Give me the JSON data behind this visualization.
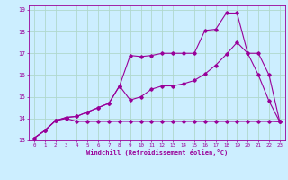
{
  "xlabel": "Windchill (Refroidissement éolien,°C)",
  "ylabel": "",
  "bg_color": "#cceeff",
  "grid_color": "#b0d8cc",
  "line_color": "#990099",
  "xlim": [
    -0.5,
    23.5
  ],
  "ylim": [
    13,
    19.2
  ],
  "xticks": [
    0,
    1,
    2,
    3,
    4,
    5,
    6,
    7,
    8,
    9,
    10,
    11,
    12,
    13,
    14,
    15,
    16,
    17,
    18,
    19,
    20,
    21,
    22,
    23
  ],
  "yticks": [
    13,
    14,
    15,
    16,
    17,
    18,
    19
  ],
  "line1_x": [
    0,
    1,
    2,
    3,
    4,
    5,
    6,
    7,
    8,
    9,
    10,
    11,
    12,
    13,
    14,
    15,
    16,
    17,
    18,
    19,
    20,
    21,
    22,
    23
  ],
  "line1_y": [
    13.1,
    13.45,
    13.9,
    14.0,
    13.87,
    13.87,
    13.87,
    13.87,
    13.87,
    13.87,
    13.87,
    13.87,
    13.87,
    13.87,
    13.87,
    13.87,
    13.87,
    13.87,
    13.87,
    13.87,
    13.87,
    13.87,
    13.87,
    13.85
  ],
  "line2_x": [
    0,
    1,
    2,
    3,
    4,
    5,
    6,
    7,
    8,
    9,
    10,
    11,
    12,
    13,
    14,
    15,
    16,
    17,
    18,
    19,
    20,
    21,
    22,
    23
  ],
  "line2_y": [
    13.1,
    13.45,
    13.9,
    14.05,
    14.1,
    14.3,
    14.5,
    14.7,
    15.5,
    14.85,
    15.0,
    15.35,
    15.5,
    15.5,
    15.6,
    15.75,
    16.05,
    16.45,
    16.95,
    17.5,
    17.0,
    16.0,
    14.8,
    13.85
  ],
  "line3_x": [
    0,
    1,
    2,
    3,
    4,
    5,
    6,
    7,
    8,
    9,
    10,
    11,
    12,
    13,
    14,
    15,
    16,
    17,
    18,
    19,
    20,
    21,
    22,
    23
  ],
  "line3_y": [
    13.1,
    13.45,
    13.9,
    14.05,
    14.1,
    14.3,
    14.5,
    14.7,
    15.5,
    16.9,
    16.85,
    16.9,
    17.0,
    17.0,
    17.0,
    17.0,
    18.05,
    18.1,
    18.85,
    18.85,
    17.0,
    17.0,
    16.0,
    13.85
  ]
}
